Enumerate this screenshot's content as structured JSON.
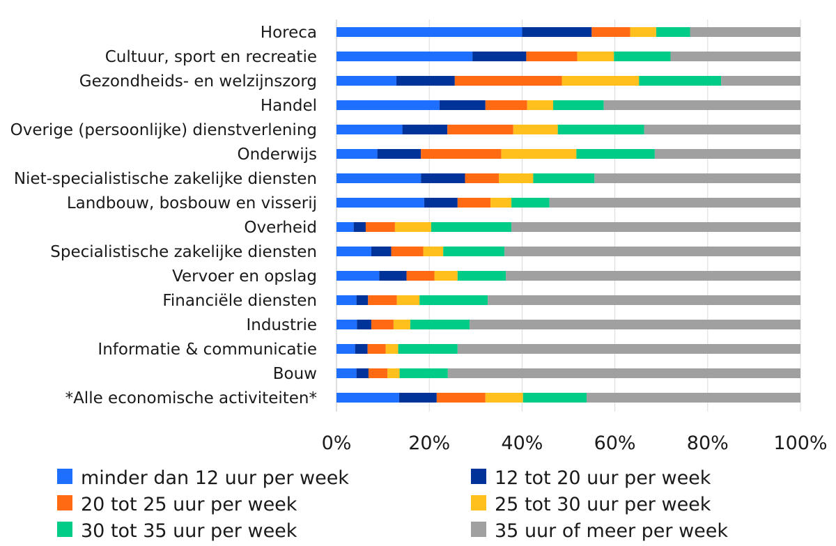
{
  "chart_data": {
    "type": "bar",
    "orientation": "horizontal",
    "stacked": "percent",
    "title": "",
    "xlabel": "",
    "ylabel": "",
    "xlim": [
      0,
      100
    ],
    "grid": true,
    "legend_position": "bottom",
    "x_ticks": [
      "0%",
      "20%",
      "40%",
      "60%",
      "80%",
      "100%"
    ],
    "categories": [
      "Horeca",
      "Cultuur, sport en recreatie",
      "Gezondheids- en welzijnszorg",
      "Handel",
      "Overige (persoonlijke) dienstverlening",
      "Onderwijs",
      "Niet-specialistische zakelijke diensten",
      "Landbouw, bosbouw en visserij",
      "Overheid",
      "Specialistische zakelijke diensten",
      "Vervoer en opslag",
      "Financiële diensten",
      "Industrie",
      "Informatie & communicatie",
      "Bouw",
      "*Alle economische activiteiten*"
    ],
    "series": [
      {
        "name": "minder dan 12 uur per week",
        "color": "#1f6fff",
        "values": [
          40.0,
          29.3,
          12.9,
          22.2,
          14.2,
          8.8,
          18.2,
          18.9,
          3.7,
          7.5,
          9.2,
          4.3,
          4.4,
          4.0,
          4.3,
          13.5
        ]
      },
      {
        "name": "12 tot 20 uur per week",
        "color": "#003399",
        "values": [
          15.0,
          11.6,
          12.6,
          9.9,
          9.7,
          9.4,
          9.5,
          7.2,
          2.6,
          4.3,
          5.9,
          2.5,
          3.1,
          2.7,
          2.6,
          8.1
        ]
      },
      {
        "name": "20 tot 25 uur per week",
        "color": "#ff6a13",
        "values": [
          8.3,
          11.0,
          23.1,
          9.0,
          14.2,
          17.3,
          7.3,
          7.1,
          6.3,
          6.9,
          6.0,
          6.2,
          4.8,
          3.9,
          4.1,
          10.5
        ]
      },
      {
        "name": "25 tot 30 uur per week",
        "color": "#ffc01e",
        "values": [
          5.6,
          7.9,
          16.6,
          5.6,
          9.6,
          16.2,
          7.4,
          4.5,
          7.8,
          4.3,
          5.0,
          4.9,
          3.6,
          2.7,
          2.6,
          8.1
        ]
      },
      {
        "name": "30 tot 35 uur per week",
        "color": "#00cc88",
        "values": [
          7.3,
          12.2,
          17.7,
          10.9,
          18.6,
          16.9,
          13.2,
          8.2,
          17.3,
          13.2,
          10.4,
          14.7,
          12.8,
          12.8,
          10.4,
          13.7
        ]
      },
      {
        "name": "35 uur of meer per week",
        "color": "#a0a0a0",
        "values": [
          23.8,
          28.0,
          17.1,
          42.4,
          33.7,
          31.4,
          44.4,
          54.1,
          62.3,
          63.8,
          63.5,
          67.4,
          71.3,
          73.9,
          76.0,
          46.1
        ]
      }
    ]
  }
}
